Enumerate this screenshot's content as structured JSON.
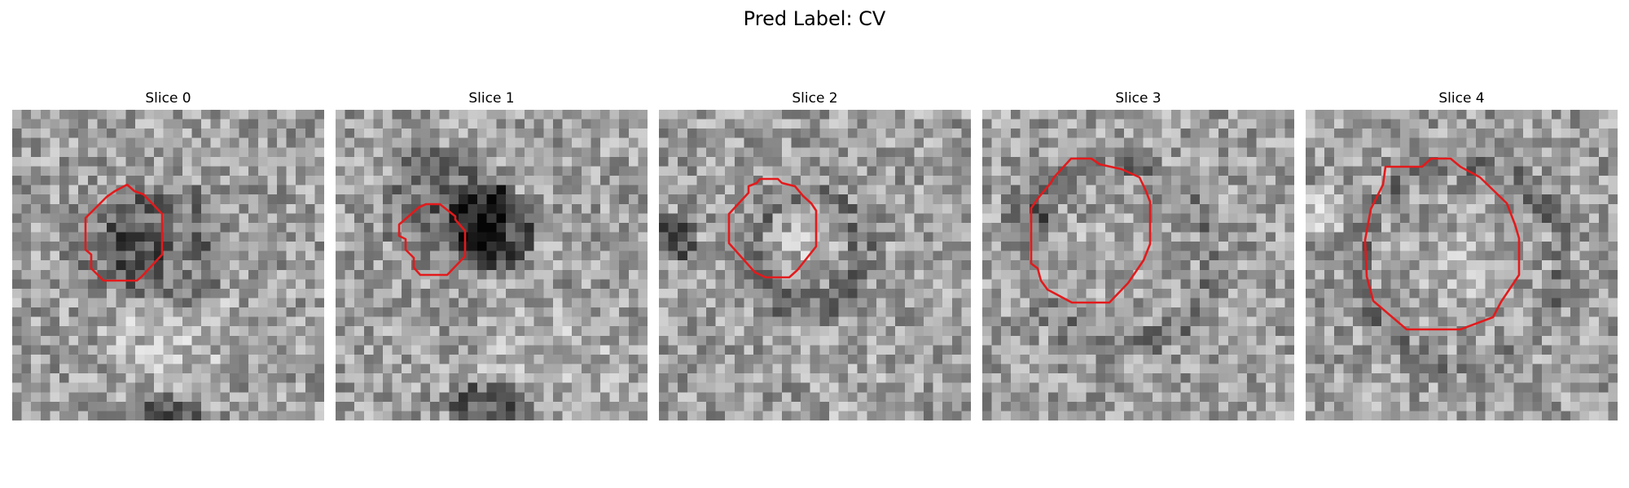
{
  "figure": {
    "title": "Pred Label: CV",
    "contour_color": "#e31a1c",
    "slices": [
      {
        "title": "Slice 0",
        "contour_icon": "red-polygon-outline"
      },
      {
        "title": "Slice 1",
        "contour_icon": "red-polygon-outline"
      },
      {
        "title": "Slice 2",
        "contour_icon": "red-polygon-outline"
      },
      {
        "title": "Slice 3",
        "contour_icon": "red-polygon-outline"
      },
      {
        "title": "Slice 4",
        "contour_icon": "red-polygon-outline"
      }
    ]
  }
}
